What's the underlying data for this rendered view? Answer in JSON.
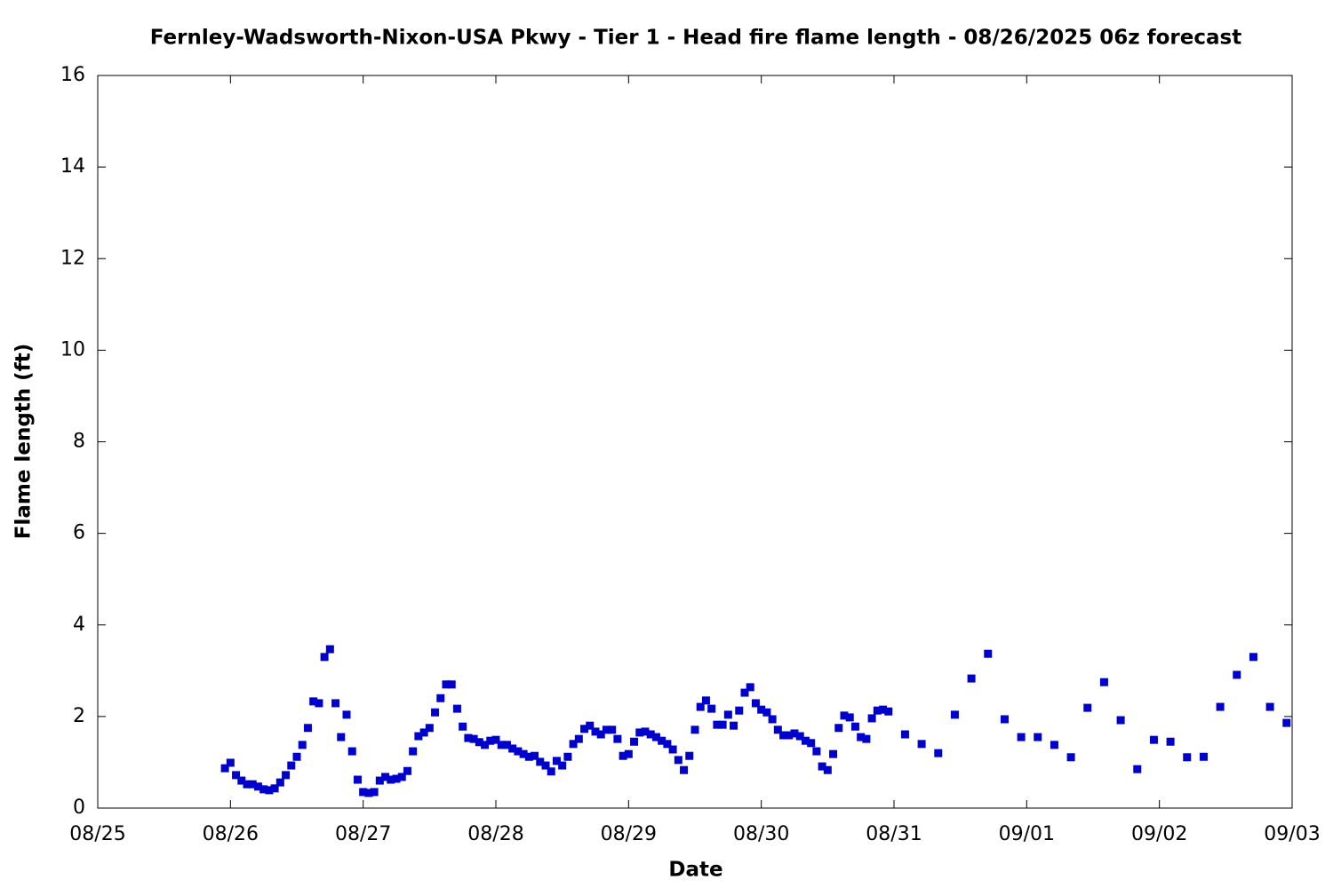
{
  "chart_data": {
    "type": "scatter",
    "title": "Fernley-Wadsworth-Nixon-USA Pkwy - Tier 1 - Head fire flame length - 08/26/2025 06z forecast",
    "xlabel": "Date",
    "ylabel": "Flame length (ft)",
    "color": "#0000cc",
    "grid": false,
    "xlim": [
      0,
      216
    ],
    "xticks": [
      {
        "value": 0,
        "label": "08/25"
      },
      {
        "value": 24,
        "label": "08/26"
      },
      {
        "value": 48,
        "label": "08/27"
      },
      {
        "value": 72,
        "label": "08/28"
      },
      {
        "value": 96,
        "label": "08/29"
      },
      {
        "value": 120,
        "label": "08/30"
      },
      {
        "value": 144,
        "label": "08/31"
      },
      {
        "value": 168,
        "label": "09/01"
      },
      {
        "value": 192,
        "label": "09/02"
      },
      {
        "value": 216,
        "label": "09/03"
      }
    ],
    "ylim": [
      0,
      16
    ],
    "yticks": [
      0,
      2,
      4,
      6,
      8,
      10,
      12,
      14,
      16
    ],
    "x": [
      23,
      24,
      25,
      26,
      27,
      28,
      29,
      30,
      31,
      32,
      33,
      34,
      35,
      36,
      37,
      38,
      39,
      40,
      41,
      42,
      43,
      44,
      45,
      46,
      47,
      48,
      49,
      50,
      51,
      52,
      53,
      54,
      55,
      56,
      57,
      58,
      59,
      60,
      61,
      62,
      63,
      64,
      65,
      66,
      67,
      68,
      69,
      70,
      71,
      72,
      73,
      74,
      75,
      76,
      77,
      78,
      79,
      80,
      81,
      82,
      83,
      84,
      85,
      86,
      87,
      88,
      89,
      90,
      91,
      92,
      93,
      94,
      95,
      96,
      97,
      98,
      99,
      100,
      101,
      102,
      103,
      104,
      105,
      106,
      107,
      108,
      109,
      110,
      111,
      112,
      113,
      114,
      115,
      116,
      117,
      118,
      119,
      120,
      121,
      122,
      123,
      124,
      125,
      126,
      127,
      128,
      129,
      130,
      131,
      132,
      133,
      134,
      135,
      136,
      137,
      138,
      139,
      140,
      141,
      142,
      143,
      146,
      149,
      152,
      155,
      158,
      161,
      164,
      167,
      170,
      173,
      176,
      179,
      182,
      185,
      188,
      191,
      194,
      197,
      200,
      203,
      206,
      209,
      212,
      215
    ],
    "values": [
      0.87,
      0.99,
      0.72,
      0.6,
      0.52,
      0.52,
      0.47,
      0.41,
      0.39,
      0.43,
      0.56,
      0.72,
      0.93,
      1.12,
      1.38,
      1.75,
      2.33,
      2.29,
      3.3,
      3.47,
      2.29,
      1.55,
      2.04,
      1.24,
      0.62,
      0.35,
      0.33,
      0.35,
      0.6,
      0.68,
      0.62,
      0.64,
      0.68,
      0.81,
      1.24,
      1.57,
      1.65,
      1.75,
      2.09,
      2.4,
      2.7,
      2.7,
      2.17,
      1.78,
      1.53,
      1.51,
      1.44,
      1.38,
      1.47,
      1.49,
      1.38,
      1.38,
      1.3,
      1.24,
      1.18,
      1.12,
      1.14,
      1.01,
      0.93,
      0.8,
      1.03,
      0.93,
      1.12,
      1.4,
      1.51,
      1.73,
      1.8,
      1.67,
      1.61,
      1.71,
      1.71,
      1.51,
      1.14,
      1.18,
      1.45,
      1.65,
      1.67,
      1.61,
      1.55,
      1.47,
      1.4,
      1.28,
      1.05,
      0.83,
      1.14,
      1.71,
      2.21,
      2.35,
      2.17,
      1.82,
      1.82,
      2.04,
      1.8,
      2.13,
      2.52,
      2.64,
      2.29,
      2.15,
      2.09,
      1.94,
      1.71,
      1.59,
      1.59,
      1.63,
      1.57,
      1.47,
      1.42,
      1.24,
      0.91,
      0.83,
      1.18,
      1.75,
      2.02,
      1.98,
      1.78,
      1.55,
      1.51,
      1.96,
      2.13,
      2.15,
      2.11,
      1.61,
      1.4,
      1.2,
      2.04,
      2.83,
      3.37,
      1.94,
      1.55,
      1.55,
      1.38,
      1.11,
      2.19,
      2.75,
      1.92,
      0.85,
      1.49,
      1.45,
      1.11,
      1.12,
      2.21,
      2.91,
      3.3,
      2.21,
      1.86
    ]
  }
}
